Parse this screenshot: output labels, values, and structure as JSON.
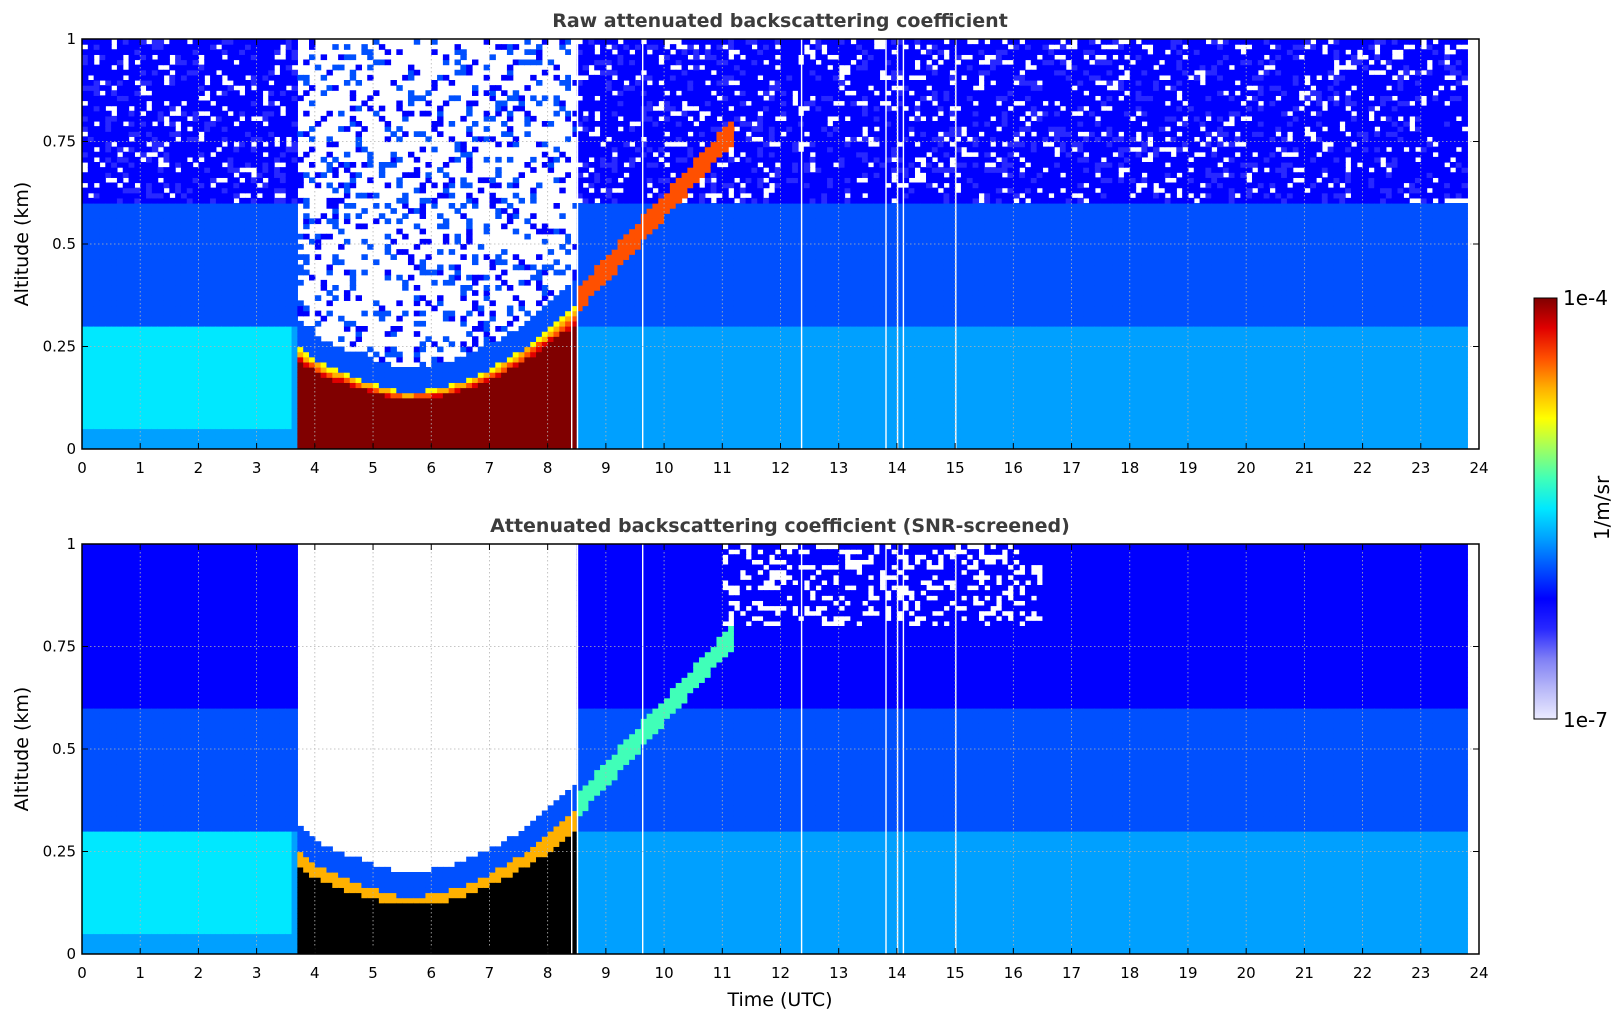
{
  "chart_data": [
    {
      "type": "heatmap",
      "title": "Raw attenuated backscattering coefficient",
      "xlabel": "",
      "ylabel": "Altitude (km)",
      "xlim": [
        0,
        24
      ],
      "ylim": [
        0,
        1
      ],
      "xticks": [
        "0",
        "1",
        "2",
        "3",
        "4",
        "5",
        "6",
        "7",
        "8",
        "9",
        "10",
        "11",
        "12",
        "13",
        "14",
        "15",
        "16",
        "17",
        "18",
        "19",
        "20",
        "21",
        "22",
        "23",
        "24"
      ],
      "yticks": [
        "0",
        "0.25",
        "0.5",
        "0.75",
        "1"
      ],
      "grid": true,
      "data_end_hour": 23.8,
      "fog_layer": {
        "start_hour": 3.65,
        "end_hour": 8.5,
        "base_km": 0.0,
        "top_km_at_start": 0.28,
        "top_km_min": 0.14,
        "top_km_min_hour": 5.5,
        "top_km_at_end": 0.36
      },
      "rising_layer": {
        "start_hour": 8.5,
        "end_hour": 11.2,
        "top_km_start": 0.36,
        "top_km_end": 0.78
      },
      "data_gaps_hours": [
        8.4,
        8.5,
        9.62,
        12.35,
        13.8,
        14.0,
        14.1,
        15.0
      ]
    },
    {
      "type": "heatmap",
      "title": "Attenuated backscattering coefficient (SNR-screened)",
      "xlabel": "Time (UTC)",
      "ylabel": "Altitude (km)",
      "xlim": [
        0,
        24
      ],
      "ylim": [
        0,
        1
      ],
      "xticks": [
        "0",
        "1",
        "2",
        "3",
        "4",
        "5",
        "6",
        "7",
        "8",
        "9",
        "10",
        "11",
        "12",
        "13",
        "14",
        "15",
        "16",
        "17",
        "18",
        "19",
        "20",
        "21",
        "22",
        "23",
        "24"
      ],
      "yticks": [
        "0",
        "0.25",
        "0.5",
        "0.75",
        "1"
      ],
      "grid": true,
      "data_end_hour": 23.8,
      "screened_gap_above_fog": {
        "start_hour": 3.55,
        "end_hour": 8.6
      },
      "data_gaps_hours": [
        8.4,
        8.5,
        9.62,
        12.35,
        13.8,
        14.0,
        14.1,
        15.0
      ]
    }
  ],
  "colorbar": {
    "label": "1/m/sr",
    "max_label": "1e-4",
    "min_label": "1e-7",
    "scale": "log",
    "colormap": "jet",
    "colors": [
      "#ebebff",
      "#b8b8f8",
      "#7f7ff5",
      "#2828ff",
      "#0000ff",
      "#0050ff",
      "#00a0ff",
      "#00e8ff",
      "#40ffb8",
      "#a0ff60",
      "#ffff00",
      "#ffb000",
      "#ff5000",
      "#e00000",
      "#800000"
    ]
  }
}
